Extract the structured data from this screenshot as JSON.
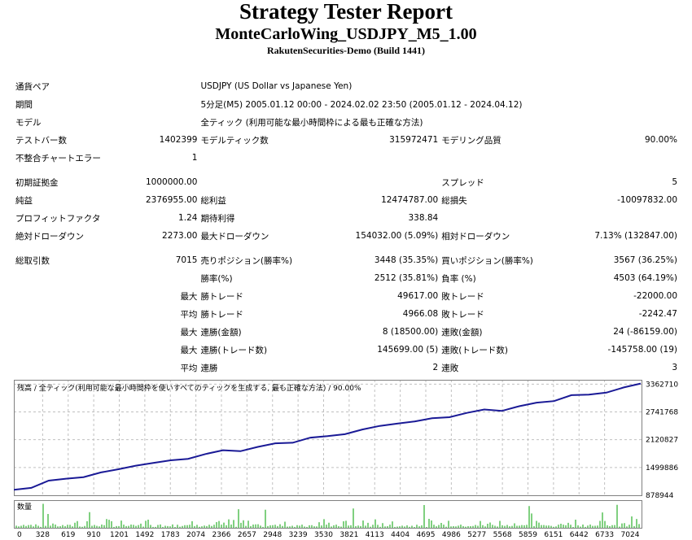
{
  "report": {
    "title": "Strategy Tester Report",
    "ea_name": "MonteCarloWing_USDJPY_M5_1.00",
    "server": "RakutenSecurities-Demo (Build 1441)"
  },
  "summary": {
    "symbol_label": "通貨ペア",
    "symbol_value": "USDJPY (US Dollar vs Japanese Yen)",
    "period_label": "期間",
    "period_value": "5分足(M5) 2005.01.12 00:00 - 2024.02.02 23:50 (2005.01.12 - 2024.04.12)",
    "model_label": "モデル",
    "model_value": "全ティック (利用可能な最小時間枠による最も正確な方法)",
    "bars_label": "テストバー数",
    "bars_value": "1402399",
    "ticks_label": "モデルティック数",
    "ticks_value": "315972471",
    "quality_label": "モデリング品質",
    "quality_value": "90.00%",
    "errors_label": "不整合チャートエラー",
    "errors_value": "1",
    "deposit_label": "初期証拠金",
    "deposit_value": "1000000.00",
    "spread_label": "スプレッド",
    "spread_value": "5",
    "net_label": "純益",
    "net_value": "2376955.00",
    "gross_profit_label": "総利益",
    "gross_profit_value": "12474787.00",
    "gross_loss_label": "総損失",
    "gross_loss_value": "-10097832.00",
    "pf_label": "プロフィットファクタ",
    "pf_value": "1.24",
    "payoff_label": "期待利得",
    "payoff_value": "338.84",
    "abs_dd_label": "絶対ドローダウン",
    "abs_dd_value": "2273.00",
    "max_dd_label": "最大ドローダウン",
    "max_dd_value": "154032.00 (5.09%)",
    "rel_dd_label": "相対ドローダウン",
    "rel_dd_value": "7.13% (132847.00)"
  },
  "trades": {
    "total_label": "総取引数",
    "total_value": "7015",
    "short_label": "売りポジション(勝率%)",
    "short_value": "3448 (35.35%)",
    "long_label": "買いポジション(勝率%)",
    "long_value": "3567 (36.25%)",
    "win_pct_label": "勝率(%)",
    "win_pct_value": "2512 (35.81%)",
    "loss_pct_label": "負率 (%)",
    "loss_pct_value": "4503 (64.19%)",
    "max_label": "最大",
    "avg_label": "平均",
    "largest_win_label": "勝トレード",
    "largest_win_value": "49617.00",
    "largest_loss_label": "敗トレード",
    "largest_loss_value": "-22000.00",
    "avg_win_label": "勝トレード",
    "avg_win_value": "4966.08",
    "avg_loss_label": "敗トレード",
    "avg_loss_value": "-2242.47",
    "max_cons_wins_money_label": "連勝(金額)",
    "max_cons_wins_money_value": "8 (18500.00)",
    "max_cons_losses_money_label": "連敗(金額)",
    "max_cons_losses_money_value": "24 (-86159.00)",
    "max_cons_wins_count_label": "連勝(トレード数)",
    "max_cons_wins_count_value": "145699.00 (5)",
    "max_cons_losses_count_label": "連敗(トレード数)",
    "max_cons_losses_count_value": "-145758.00 (19)",
    "avg_cons_wins_label": "連勝",
    "avg_cons_wins_value": "2",
    "avg_cons_losses_label": "連敗",
    "avg_cons_losses_value": "3"
  },
  "chart_data": {
    "type": "line",
    "title": "残高 / 全ティック(利用可能な最小時間枠を使いすべてのティックを生成する, 最も正確な方法) / 90.00%",
    "volume_label": "数量",
    "series": [
      {
        "values": [
          1000000,
          1080000,
          1170000,
          1250000,
          1320000,
          1390000,
          1460000,
          1540000,
          1600000,
          1660000,
          1730000,
          1800000,
          1850000,
          1900000,
          1960000,
          2040000,
          2090000,
          2130000,
          2200000,
          2280000,
          2350000,
          2430000,
          2480000,
          2530000,
          2600000,
          2660000,
          2720000,
          2760000,
          2800000,
          2870000,
          2950000,
          3020000,
          3080000,
          3130000,
          3210000,
          3290000,
          3376955
        ]
      }
    ],
    "x": [
      0,
      195,
      390,
      585,
      780,
      975,
      1170,
      1365,
      1560,
      1755,
      1950,
      2145,
      2340,
      2535,
      2730,
      2925,
      3120,
      3315,
      3510,
      3705,
      3900,
      4095,
      4290,
      4485,
      4680,
      4875,
      5070,
      5265,
      5460,
      5655,
      5850,
      6045,
      6240,
      6435,
      6630,
      6825,
      7015
    ],
    "y_ticks": [
      "3362710",
      "2741768",
      "2120827",
      "1499886",
      "878944"
    ],
    "x_ticks": [
      "0",
      "328",
      "619",
      "910",
      "1201",
      "1492",
      "1783",
      "2074",
      "2366",
      "2657",
      "2948",
      "3239",
      "3530",
      "3821",
      "4113",
      "4404",
      "4695",
      "4986",
      "5277",
      "5568",
      "5859",
      "6151",
      "6442",
      "6733",
      "7024"
    ],
    "ylim": [
      878944,
      3460000
    ],
    "xlim": [
      0,
      7024
    ],
    "colors": {
      "balance": "#1a1a96",
      "volume": "#00a000",
      "grid": "#c0c0c0"
    }
  }
}
